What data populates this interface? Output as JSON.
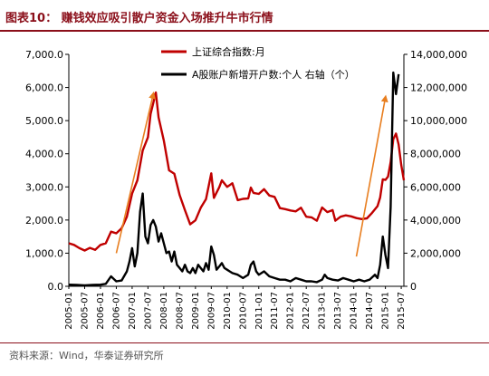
{
  "header": {
    "title": "图表10：  赚钱效应吸引散户资金入场推升牛市行情"
  },
  "source": "资料来源：Wind，华泰证券研究所",
  "colors": {
    "accent": "#8b0f1a",
    "index_series": "#c00000",
    "accounts_series": "#000000",
    "arrow": "#e87e1f"
  },
  "chart_data": {
    "type": "line",
    "title": "",
    "xlabel": "",
    "ylabel": "",
    "y_left_lim": [
      0,
      7000
    ],
    "y_right_lim": [
      0,
      14000000
    ],
    "y_left_ticks": [
      "0.0",
      "1,000.0",
      "2,000.0",
      "3,000.0",
      "4,000.0",
      "5,000.0",
      "6,000.0",
      "7,000.0"
    ],
    "y_right_ticks": [
      "0",
      "2,000,000",
      "4,000,000",
      "6,000,000",
      "8,000,000",
      "10,000,000",
      "12,000,000",
      "14,000,000"
    ],
    "x_ticks": [
      "2005-01",
      "2005-07",
      "2006-01",
      "2006-07",
      "2007-01",
      "2007-07",
      "2008-01",
      "2008-07",
      "2009-01",
      "2009-07",
      "2010-01",
      "2010-07",
      "2011-01",
      "2011-07",
      "2012-01",
      "2012-07",
      "2013-01",
      "2013-07",
      "2014-01",
      "2014-07",
      "2015-01",
      "2015-07"
    ],
    "legend_position": "top-center",
    "grid": false,
    "series": [
      {
        "name": "上证综合指数:月",
        "axis": "left",
        "points": [
          [
            "2005-01",
            1300
          ],
          [
            "2005-03",
            1250
          ],
          [
            "2005-05",
            1150
          ],
          [
            "2005-07",
            1080
          ],
          [
            "2005-09",
            1160
          ],
          [
            "2005-11",
            1100
          ],
          [
            "2006-01",
            1250
          ],
          [
            "2006-03",
            1300
          ],
          [
            "2006-05",
            1650
          ],
          [
            "2006-07",
            1600
          ],
          [
            "2006-09",
            1750
          ],
          [
            "2006-11",
            2100
          ],
          [
            "2007-01",
            2800
          ],
          [
            "2007-03",
            3200
          ],
          [
            "2007-05",
            4100
          ],
          [
            "2007-07",
            4500
          ],
          [
            "2007-08",
            5200
          ],
          [
            "2007-10",
            5850
          ],
          [
            "2007-11",
            5100
          ],
          [
            "2008-01",
            4400
          ],
          [
            "2008-03",
            3500
          ],
          [
            "2008-05",
            3400
          ],
          [
            "2008-07",
            2750
          ],
          [
            "2008-09",
            2300
          ],
          [
            "2008-11",
            1870
          ],
          [
            "2009-01",
            1990
          ],
          [
            "2009-03",
            2370
          ],
          [
            "2009-05",
            2630
          ],
          [
            "2009-07",
            3410
          ],
          [
            "2009-08",
            2670
          ],
          [
            "2009-10",
            2990
          ],
          [
            "2009-11",
            3200
          ],
          [
            "2010-01",
            3000
          ],
          [
            "2010-03",
            3110
          ],
          [
            "2010-05",
            2600
          ],
          [
            "2010-07",
            2640
          ],
          [
            "2010-09",
            2650
          ],
          [
            "2010-10",
            2980
          ],
          [
            "2010-11",
            2820
          ],
          [
            "2011-01",
            2790
          ],
          [
            "2011-03",
            2930
          ],
          [
            "2011-05",
            2740
          ],
          [
            "2011-07",
            2700
          ],
          [
            "2011-09",
            2360
          ],
          [
            "2011-11",
            2330
          ],
          [
            "2012-01",
            2290
          ],
          [
            "2012-03",
            2260
          ],
          [
            "2012-05",
            2370
          ],
          [
            "2012-07",
            2100
          ],
          [
            "2012-09",
            2080
          ],
          [
            "2012-11",
            1980
          ],
          [
            "2013-01",
            2380
          ],
          [
            "2013-03",
            2240
          ],
          [
            "2013-05",
            2300
          ],
          [
            "2013-06",
            1980
          ],
          [
            "2013-08",
            2100
          ],
          [
            "2013-10",
            2140
          ],
          [
            "2013-12",
            2110
          ],
          [
            "2014-02",
            2060
          ],
          [
            "2014-04",
            2030
          ],
          [
            "2014-06",
            2050
          ],
          [
            "2014-08",
            2220
          ],
          [
            "2014-10",
            2420
          ],
          [
            "2014-11",
            2680
          ],
          [
            "2014-12",
            3230
          ],
          [
            "2015-01",
            3210
          ],
          [
            "2015-02",
            3310
          ],
          [
            "2015-03",
            3750
          ],
          [
            "2015-04",
            4440
          ],
          [
            "2015-05",
            4610
          ],
          [
            "2015-06",
            4280
          ],
          [
            "2015-07",
            3660
          ],
          [
            "2015-08",
            3200
          ]
        ]
      },
      {
        "name": "A股账户新增开户数:个人 右轴（个）",
        "axis": "right",
        "points": [
          [
            "2005-01",
            100000
          ],
          [
            "2005-04",
            80000
          ],
          [
            "2005-07",
            60000
          ],
          [
            "2005-10",
            80000
          ],
          [
            "2006-01",
            100000
          ],
          [
            "2006-03",
            150000
          ],
          [
            "2006-05",
            600000
          ],
          [
            "2006-07",
            300000
          ],
          [
            "2006-09",
            350000
          ],
          [
            "2006-11",
            900000
          ],
          [
            "2006-12",
            1500000
          ],
          [
            "2007-01",
            2300000
          ],
          [
            "2007-02",
            1200000
          ],
          [
            "2007-03",
            2000000
          ],
          [
            "2007-04",
            4500000
          ],
          [
            "2007-05",
            5600000
          ],
          [
            "2007-06",
            3000000
          ],
          [
            "2007-07",
            2600000
          ],
          [
            "2007-08",
            3700000
          ],
          [
            "2007-09",
            4000000
          ],
          [
            "2007-10",
            3600000
          ],
          [
            "2007-11",
            2700000
          ],
          [
            "2007-12",
            3200000
          ],
          [
            "2008-01",
            2600000
          ],
          [
            "2008-02",
            2000000
          ],
          [
            "2008-03",
            2100000
          ],
          [
            "2008-04",
            1500000
          ],
          [
            "2008-05",
            2100000
          ],
          [
            "2008-06",
            1300000
          ],
          [
            "2008-07",
            1100000
          ],
          [
            "2008-08",
            900000
          ],
          [
            "2008-09",
            1300000
          ],
          [
            "2008-10",
            900000
          ],
          [
            "2008-11",
            800000
          ],
          [
            "2008-12",
            1100000
          ],
          [
            "2009-01",
            800000
          ],
          [
            "2009-02",
            1300000
          ],
          [
            "2009-03",
            1100000
          ],
          [
            "2009-04",
            900000
          ],
          [
            "2009-05",
            1400000
          ],
          [
            "2009-06",
            1000000
          ],
          [
            "2009-07",
            2400000
          ],
          [
            "2009-08",
            1900000
          ],
          [
            "2009-09",
            1000000
          ],
          [
            "2009-10",
            1200000
          ],
          [
            "2009-11",
            1400000
          ],
          [
            "2009-12",
            1100000
          ],
          [
            "2010-01",
            1000000
          ],
          [
            "2010-03",
            800000
          ],
          [
            "2010-05",
            700000
          ],
          [
            "2010-07",
            500000
          ],
          [
            "2010-09",
            700000
          ],
          [
            "2010-10",
            1300000
          ],
          [
            "2010-11",
            1500000
          ],
          [
            "2010-12",
            900000
          ],
          [
            "2011-01",
            700000
          ],
          [
            "2011-03",
            900000
          ],
          [
            "2011-05",
            600000
          ],
          [
            "2011-07",
            500000
          ],
          [
            "2011-09",
            400000
          ],
          [
            "2011-11",
            400000
          ],
          [
            "2012-01",
            300000
          ],
          [
            "2012-03",
            500000
          ],
          [
            "2012-05",
            400000
          ],
          [
            "2012-07",
            300000
          ],
          [
            "2012-09",
            300000
          ],
          [
            "2012-11",
            250000
          ],
          [
            "2013-01",
            400000
          ],
          [
            "2013-02",
            700000
          ],
          [
            "2013-03",
            500000
          ],
          [
            "2013-05",
            400000
          ],
          [
            "2013-07",
            350000
          ],
          [
            "2013-09",
            500000
          ],
          [
            "2013-11",
            400000
          ],
          [
            "2014-01",
            300000
          ],
          [
            "2014-03",
            400000
          ],
          [
            "2014-05",
            300000
          ],
          [
            "2014-07",
            400000
          ],
          [
            "2014-09",
            700000
          ],
          [
            "2014-10",
            500000
          ],
          [
            "2014-11",
            1300000
          ],
          [
            "2014-12",
            3000000
          ],
          [
            "2015-01",
            1900000
          ],
          [
            "2015-02",
            1100000
          ],
          [
            "2015-03",
            4800000
          ],
          [
            "2015-04",
            12900000
          ],
          [
            "2015-05",
            11600000
          ],
          [
            "2015-06",
            12800000
          ]
        ]
      }
    ],
    "annotations": [
      {
        "type": "arrow",
        "from": [
          "2006-07",
          1000
        ],
        "to": [
          "2007-09",
          5800
        ]
      },
      {
        "type": "arrow",
        "from": [
          "2014-02",
          900
        ],
        "to": [
          "2015-01",
          5700
        ]
      }
    ]
  }
}
